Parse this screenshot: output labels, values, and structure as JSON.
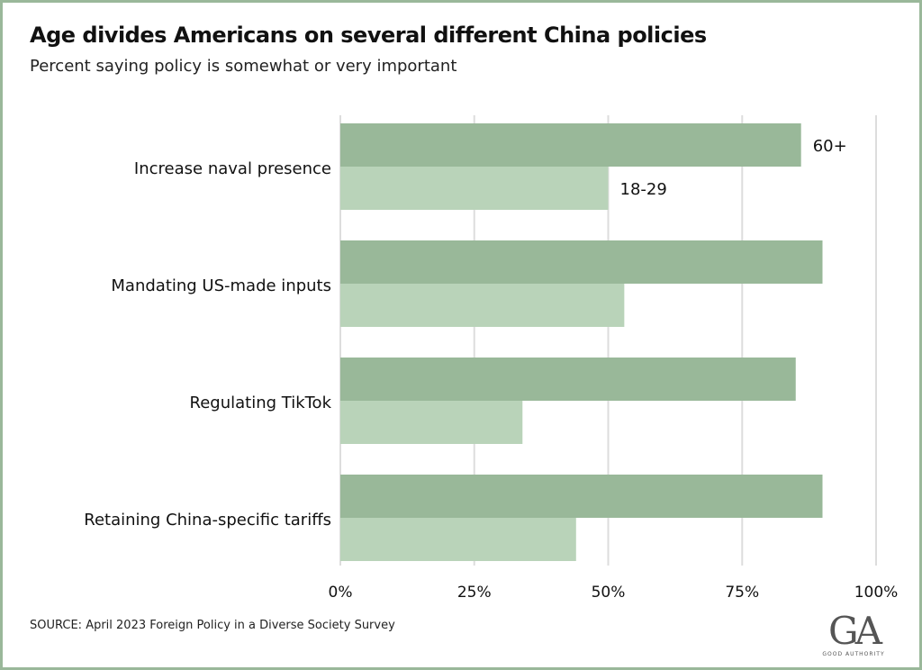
{
  "title": "Age divides Americans on several different China policies",
  "subtitle": "Percent saying policy is somewhat or very important",
  "source": "SOURCE: April 2023 Foreign Policy in a Diverse Society Survey",
  "logo": {
    "mark": "GA",
    "wordmark": "GOOD AUTHORITY"
  },
  "colors": {
    "frame": "#9ab89a",
    "series_60_plus": "#99b899",
    "series_18_29": "#b9d3b9",
    "gridline": "#dddddd"
  },
  "chart_data": {
    "type": "bar",
    "orientation": "horizontal",
    "categories": [
      "Increase naval presence",
      "Mandating US-made inputs",
      "Regulating TikTok",
      "Retaining China-specific tariffs"
    ],
    "series": [
      {
        "name": "60+",
        "color": "#99b899",
        "values": [
          86,
          90,
          85,
          90
        ]
      },
      {
        "name": "18-29",
        "color": "#b9d3b9",
        "values": [
          50,
          53,
          34,
          44
        ]
      }
    ],
    "xlim": [
      0,
      100
    ],
    "xticks": [
      0,
      25,
      50,
      75,
      100
    ],
    "xtick_labels": [
      "0%",
      "25%",
      "50%",
      "75%",
      "100%"
    ],
    "grid": true,
    "legend": "direct labels on first category"
  }
}
